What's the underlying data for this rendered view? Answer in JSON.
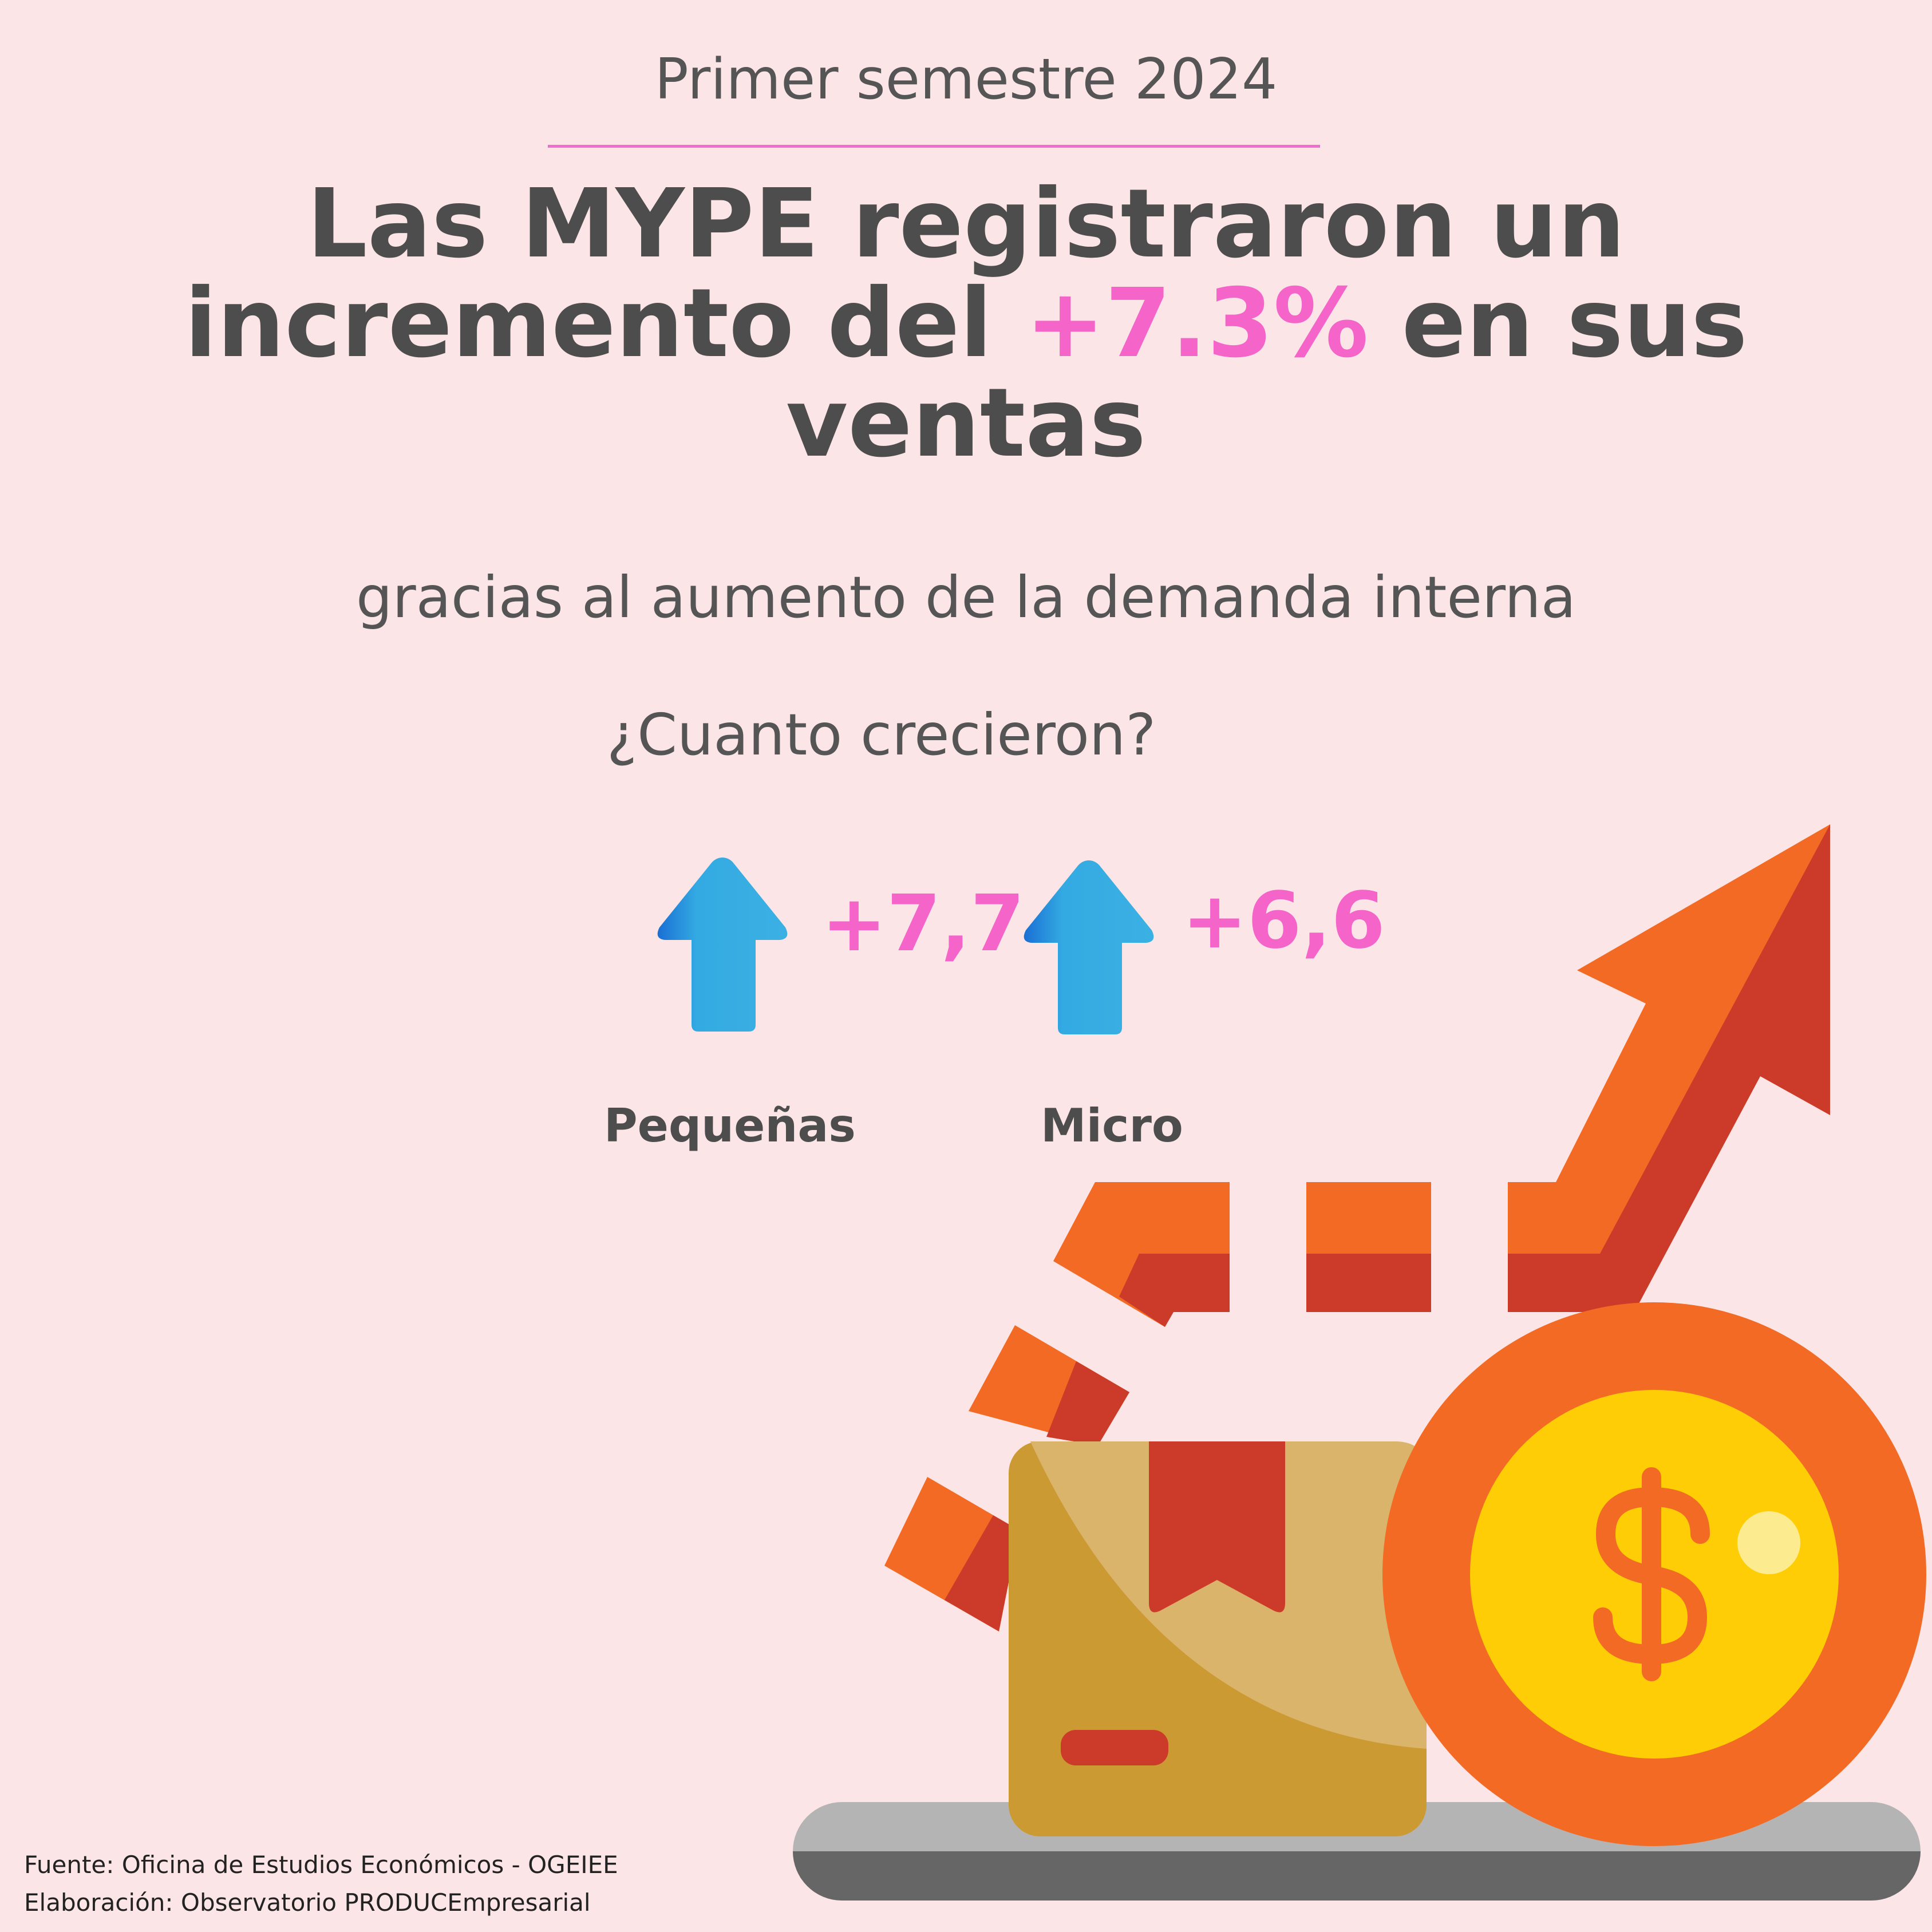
{
  "header": {
    "period": "Primer semestre 2024",
    "headline_part1": "Las MYPE registraron un incremento del ",
    "headline_highlight": "+7.3%",
    "headline_part2": " en sus ventas"
  },
  "subtitle": "gracias al aumento de la demanda interna",
  "question": "¿Cuanto crecieron?",
  "segments": [
    {
      "label": "Pequeñas",
      "value": "+7,7",
      "icon": "up-arrow-icon"
    },
    {
      "label": "Micro",
      "value": "+6,6",
      "icon": "up-arrow-icon"
    }
  ],
  "illustration": {
    "icons": [
      "trend-arrow-icon",
      "box-icon",
      "dollar-coin-icon"
    ],
    "colors": {
      "orange": "#f26a24",
      "red": "#cc3a2a",
      "gold": "#fecd05",
      "box": "#cc9a32"
    }
  },
  "footer": {
    "source": "Fuente: Oficina de Estudios Económicos - OGEIEE",
    "credit": "Elaboración: Observatorio PRODUCEmpresarial"
  }
}
